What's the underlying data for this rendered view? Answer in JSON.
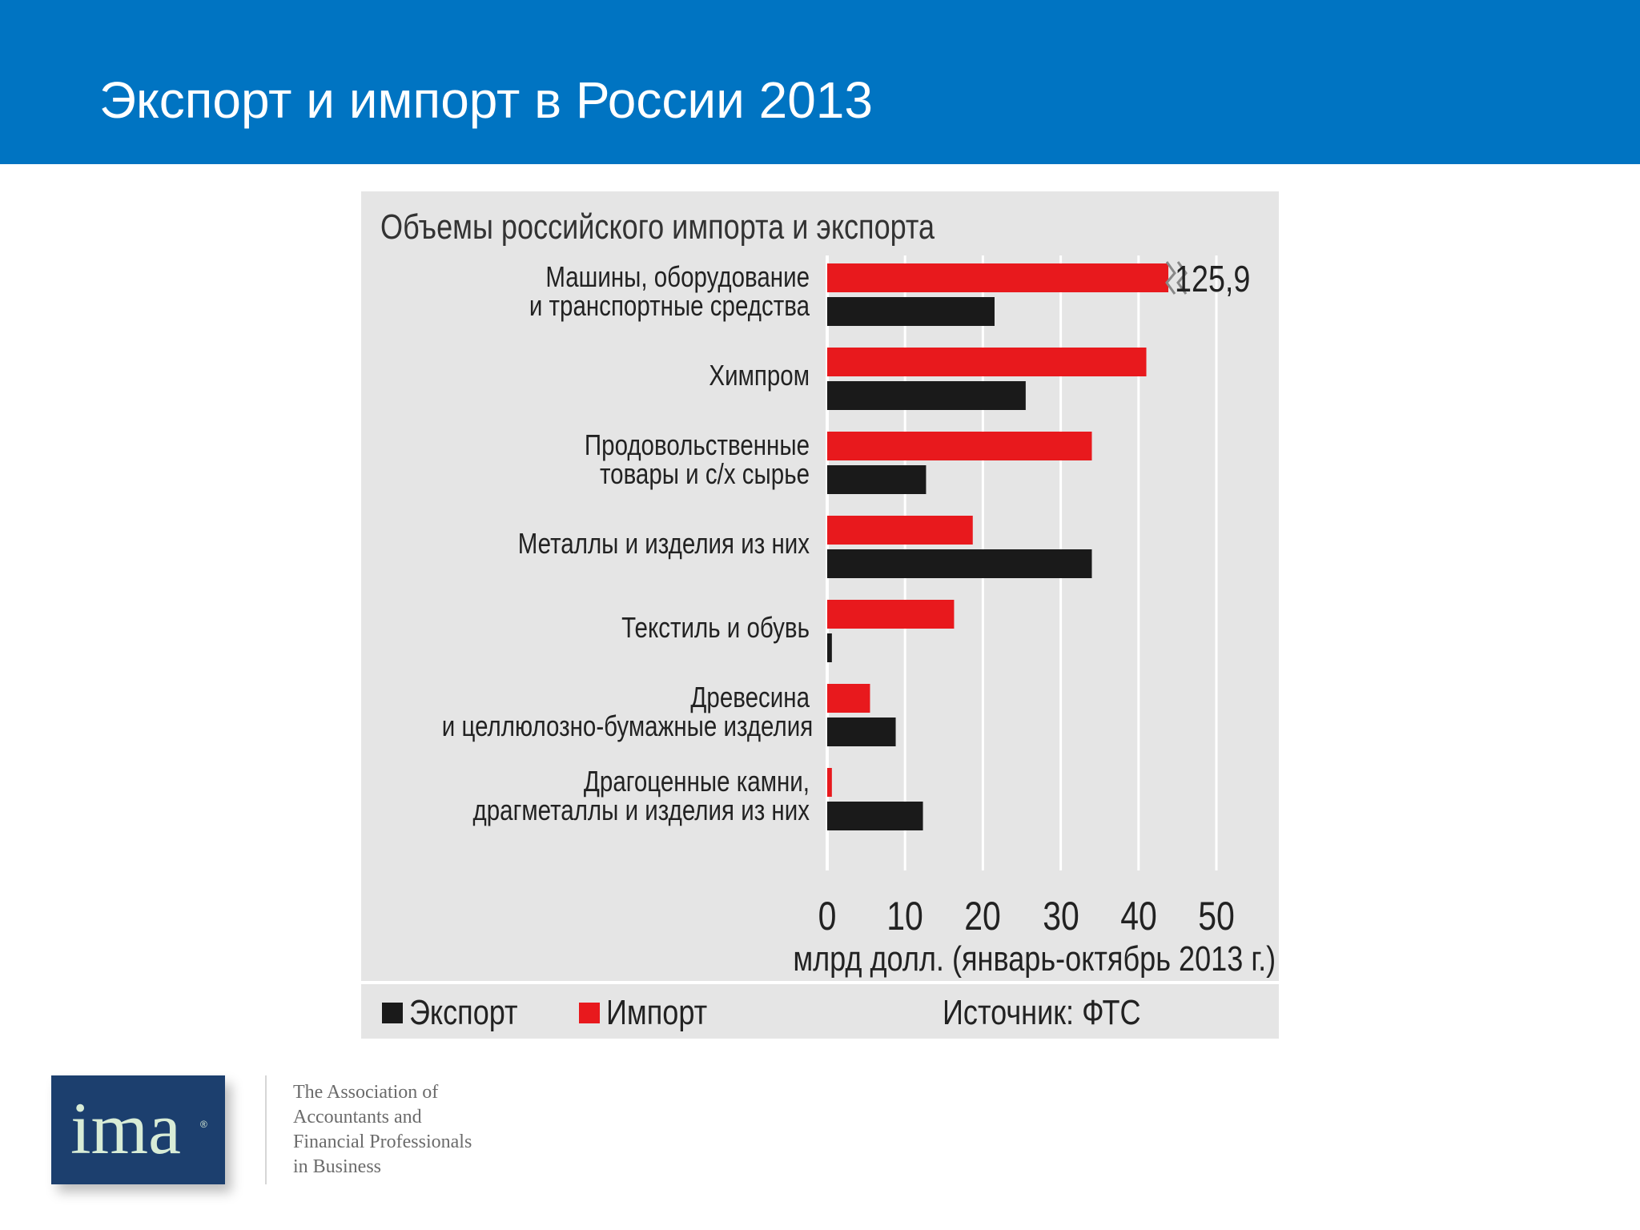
{
  "slide": {
    "title": "Экспорт и импорт в России 2013"
  },
  "chart_data": {
    "type": "bar",
    "orientation": "horizontal",
    "title": "Объемы российского импорта и экспорта",
    "categories": [
      [
        "Машины, оборудование",
        "и транспортные средства"
      ],
      [
        "Химпром"
      ],
      [
        "Продовольственные",
        "товары и с/х сырье"
      ],
      [
        "Металлы и изделия из них"
      ],
      [
        "Текстиль и обувь"
      ],
      [
        "Древесина",
        "и целлюлозно-бумажные изделия"
      ],
      [
        "Драгоценные камни,",
        "драгметаллы и изделия из них"
      ]
    ],
    "series": [
      {
        "name": "Импорт",
        "color": "#e8191d",
        "values": [
          125.9,
          41,
          34,
          18.7,
          16.3,
          5.5,
          0.6
        ]
      },
      {
        "name": "Экспорт",
        "color": "#1a1a1a",
        "values": [
          21.5,
          25.5,
          12.7,
          34,
          0.6,
          8.8,
          12.3
        ]
      }
    ],
    "value_labels": {
      "0": "125,9"
    },
    "axis_break": {
      "category_index": 0,
      "series": "Импорт"
    },
    "xlim": [
      0,
      50
    ],
    "xticks": [
      "0",
      "10",
      "20",
      "30",
      "40",
      "50"
    ],
    "xlabel": "млрд долл. (январь-октябрь 2013 г.)",
    "legend": [
      {
        "label": "Экспорт",
        "color": "#1a1a1a"
      },
      {
        "label": "Импорт",
        "color": "#e8191d"
      }
    ],
    "legend_position": "bottom",
    "source": "Источник: ФТС",
    "grid": true
  },
  "footer": {
    "logo_text": "ima",
    "logo_reg": "®",
    "tagline": [
      "The Association of",
      "Accountants and",
      "Financial Professionals",
      "in Business"
    ]
  }
}
